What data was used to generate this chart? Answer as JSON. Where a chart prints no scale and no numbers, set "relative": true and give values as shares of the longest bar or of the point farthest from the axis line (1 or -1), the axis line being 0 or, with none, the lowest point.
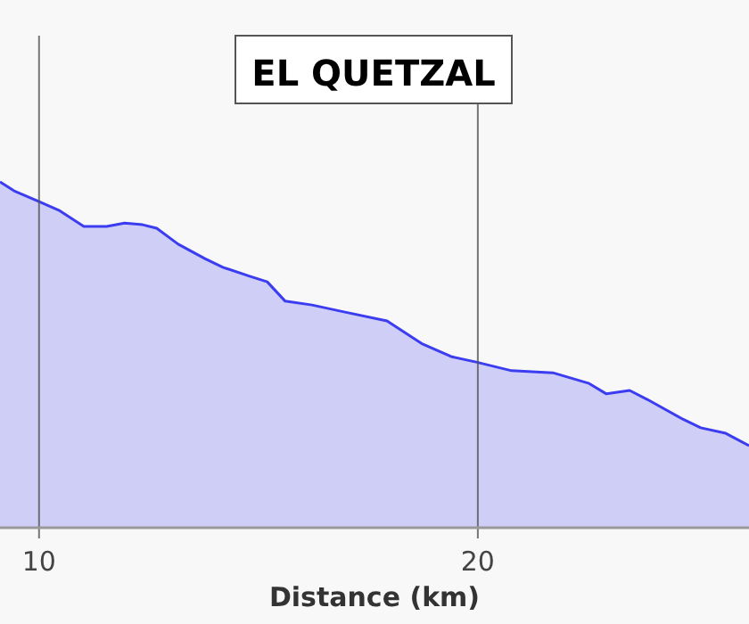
{
  "chart_data": {
    "type": "area",
    "title": "EL QUETZAL",
    "xlabel": "Distance (km)",
    "relative": true,
    "grid": "x",
    "xlim": [
      9.11,
      26.18
    ],
    "xticks": [
      10,
      20
    ],
    "x": [
      9.11,
      9.43,
      10.0,
      10.45,
      11.02,
      11.54,
      11.95,
      12.36,
      12.68,
      13.17,
      13.78,
      14.19,
      14.8,
      15.2,
      15.61,
      16.22,
      16.95,
      17.93,
      18.74,
      19.39,
      19.96,
      20.77,
      21.71,
      22.52,
      22.93,
      23.46,
      23.86,
      24.67,
      25.08,
      25.65,
      26.18
    ],
    "series": [
      {
        "color": "#3c3cf0",
        "values": [
          1.0,
          0.974,
          0.943,
          0.918,
          0.871,
          0.871,
          0.881,
          0.876,
          0.866,
          0.82,
          0.778,
          0.753,
          0.727,
          0.711,
          0.655,
          0.644,
          0.624,
          0.598,
          0.531,
          0.495,
          0.479,
          0.454,
          0.448,
          0.418,
          0.387,
          0.397,
          0.371,
          0.314,
          0.289,
          0.273,
          0.237
        ]
      }
    ]
  }
}
